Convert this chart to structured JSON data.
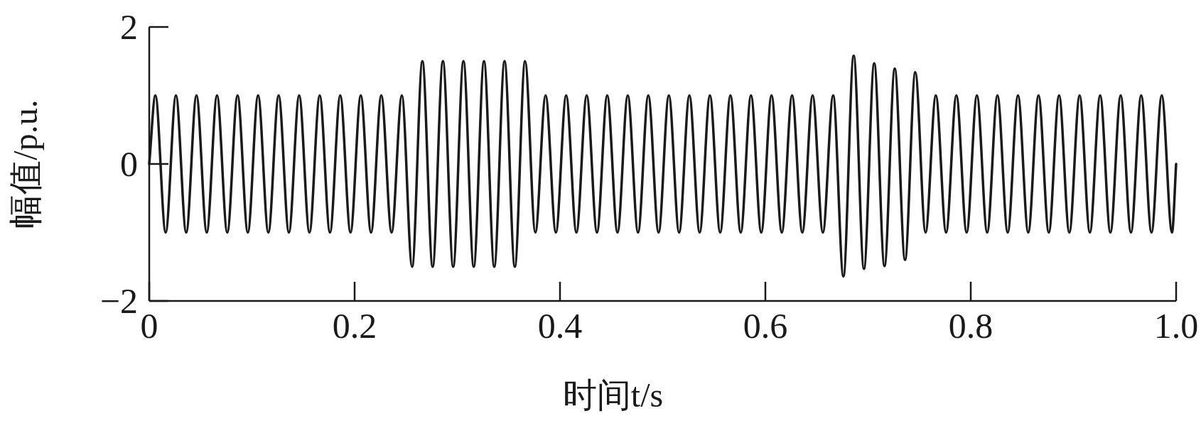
{
  "chart_data": {
    "type": "line",
    "xlabel": "时间t/s",
    "ylabel": "幅值/p.u.",
    "xlim": [
      0,
      1
    ],
    "xticks": [
      0,
      0.2,
      0.4,
      0.6,
      0.8,
      {
        "value": 1,
        "label": "1.0"
      }
    ],
    "ylim": [
      -2,
      2
    ],
    "yticks": [
      {
        "value": -2,
        "label": "−2"
      },
      0,
      2
    ],
    "x": [
      0,
      0.006,
      0.016,
      0.026,
      0.036,
      0.046,
      0.056,
      0.066,
      0.076,
      0.086,
      0.096,
      0.106,
      0.116,
      0.126,
      0.136,
      0.146,
      0.156,
      0.166,
      0.176,
      0.186,
      0.196,
      0.206,
      0.216,
      0.226,
      0.236,
      0.246,
      0.256,
      0.266,
      0.276,
      0.286,
      0.296,
      0.306,
      0.316,
      0.326,
      0.336,
      0.346,
      0.356,
      0.366,
      0.376,
      0.386,
      0.396,
      0.406,
      0.416,
      0.426,
      0.436,
      0.446,
      0.456,
      0.466,
      0.476,
      0.486,
      0.496,
      0.506,
      0.516,
      0.526,
      0.536,
      0.546,
      0.556,
      0.566,
      0.576,
      0.586,
      0.596,
      0.606,
      0.616,
      0.626,
      0.636,
      0.646,
      0.656,
      0.666,
      0.676,
      0.686,
      0.696,
      0.706,
      0.716,
      0.726,
      0.736,
      0.746,
      0.756,
      0.766,
      0.776,
      0.786,
      0.796,
      0.806,
      0.816,
      0.826,
      0.836,
      0.846,
      0.856,
      0.866,
      0.876,
      0.886,
      0.896,
      0.906,
      0.916,
      0.926,
      0.936,
      0.946,
      0.956,
      0.966,
      0.976,
      0.986,
      0.996,
      1
    ],
    "series": [
      {
        "color": "#1a1a1a",
        "values": [
          0,
          1,
          -1,
          1,
          -1,
          1,
          -1,
          1,
          -1,
          1,
          -1,
          1,
          -1,
          1,
          -1,
          1,
          -1,
          1,
          -1,
          1,
          -1,
          1,
          -1,
          1,
          -1,
          1,
          -1.5,
          1.5,
          -1.5,
          1.5,
          -1.5,
          1.5,
          -1.5,
          1.5,
          -1.5,
          1.5,
          -1.5,
          1.5,
          -1,
          1,
          -1,
          1,
          -1,
          1,
          -1,
          1,
          -1,
          1,
          -1,
          1,
          -1,
          1,
          -1,
          1,
          -1,
          1,
          -1,
          1,
          -1,
          1,
          -1,
          1,
          -1,
          1,
          -1,
          1,
          -1,
          1,
          -1.64,
          1.58,
          -1.53,
          1.47,
          -1.49,
          1.39,
          -1.4,
          1.34,
          -1,
          1,
          -1,
          1,
          -1,
          1,
          -1,
          1,
          -1,
          1,
          -1,
          1,
          -1,
          1,
          -1,
          1,
          -1,
          1,
          -1,
          1,
          -1,
          1,
          -1,
          1,
          -1,
          0
        ]
      }
    ]
  }
}
